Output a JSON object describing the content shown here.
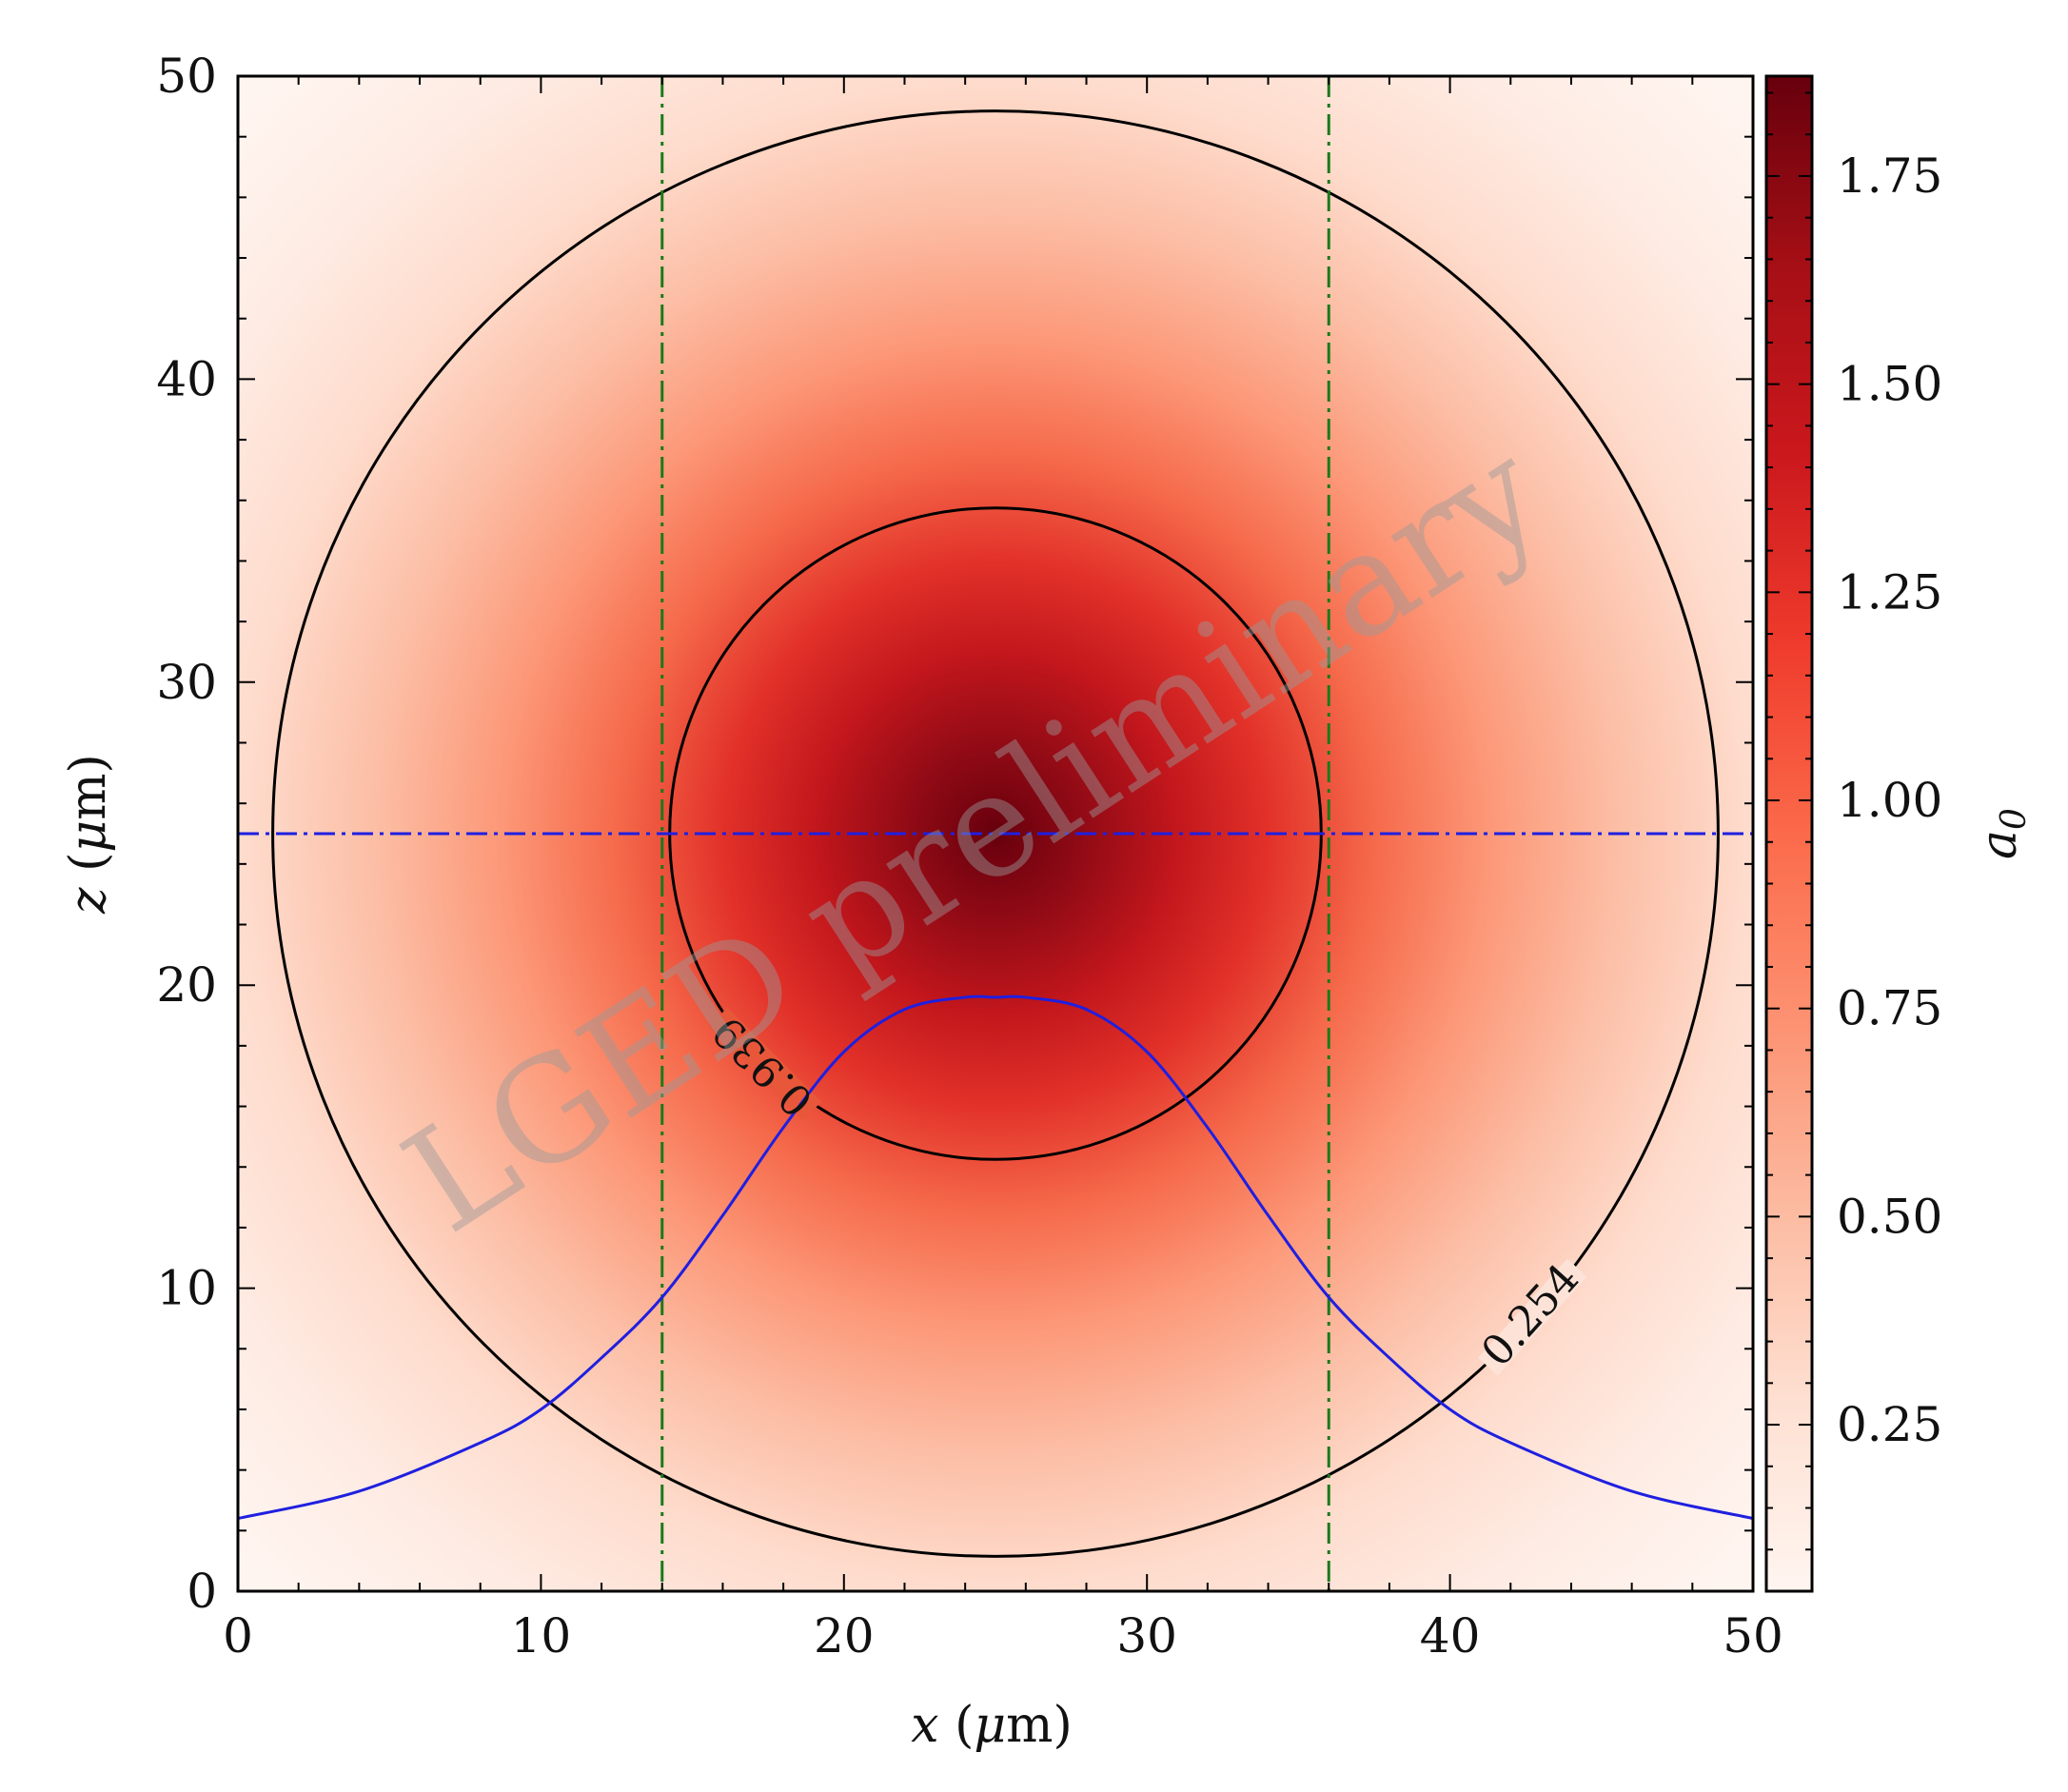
{
  "chart_data": {
    "type": "heatmap",
    "xlabel": "x (μm)",
    "ylabel": "z (μm)",
    "xlim": [
      0,
      50
    ],
    "ylim": [
      0,
      50
    ],
    "x_ticks": [
      "0",
      "10",
      "20",
      "30",
      "40",
      "50"
    ],
    "y_ticks": [
      "0",
      "10",
      "20",
      "30",
      "40",
      "50"
    ],
    "colormap": "Reds",
    "colorbar": {
      "label": "a₀",
      "range": [
        0.05,
        1.87
      ],
      "ticks": [
        "0.25",
        "0.50",
        "0.75",
        "1.00",
        "1.25",
        "1.50",
        "1.75"
      ],
      "tick_values": [
        0.25,
        0.5,
        0.75,
        1.0,
        1.25,
        1.5,
        1.75
      ]
    },
    "field": {
      "center": [
        25,
        25
      ],
      "peak": 1.87,
      "note_gaussian_waist_um": 14
    },
    "contours": [
      {
        "level": 0.939,
        "label": "0.939",
        "center": [
          25,
          25
        ],
        "radius": 10.75
      },
      {
        "level": 0.254,
        "label": "0.254",
        "center": [
          25,
          25
        ],
        "radius": 23.85
      }
    ],
    "vertical_lines": {
      "x": [
        14,
        36
      ],
      "style": "dash-dot",
      "color": "#1a7a1a"
    },
    "horizontal_line": {
      "y": 25,
      "style": "dash-dot",
      "color": "#1f1fe0"
    },
    "profile_curve": {
      "color": "#1f1fe0",
      "points": [
        [
          0,
          2.4
        ],
        [
          4,
          3.3
        ],
        [
          8,
          4.9
        ],
        [
          10,
          6.0
        ],
        [
          12,
          7.7
        ],
        [
          14,
          9.7
        ],
        [
          16,
          12.4
        ],
        [
          18,
          15.3
        ],
        [
          20,
          17.8
        ],
        [
          22,
          19.2
        ],
        [
          24,
          19.6
        ],
        [
          25,
          19.6
        ],
        [
          26,
          19.6
        ],
        [
          28,
          19.2
        ],
        [
          30,
          17.8
        ],
        [
          32,
          15.3
        ],
        [
          34,
          12.4
        ],
        [
          36,
          9.7
        ],
        [
          38,
          7.7
        ],
        [
          40,
          6.0
        ],
        [
          42,
          4.9
        ],
        [
          46,
          3.3
        ],
        [
          50,
          2.4
        ]
      ]
    },
    "watermark": "LGED preliminary",
    "grid": false
  }
}
